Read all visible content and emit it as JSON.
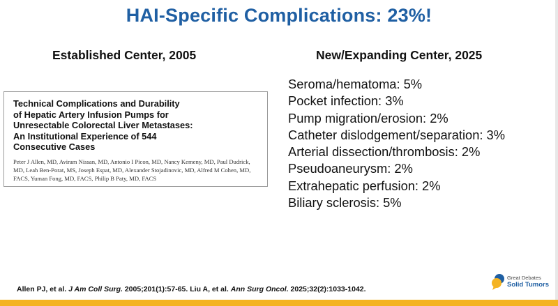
{
  "title": "HAI-Specific Complications: 23%!",
  "left_column": {
    "heading": "Established Center, 2005",
    "paper_title": "Technical Complications and Durability\nof Hepatic Artery Infusion Pumps for\nUnresectable Colorectal Liver Metastases:\nAn Institutional Experience of 544\nConsecutive Cases",
    "paper_authors": "Peter J Allen, MD, Aviram Nissan, MD, Antonio I Picon, MD, Nancy Kemeny, MD, Paul Dudrick, MD, Leah Ben-Porat, MS, Joseph Espat, MD, Alexander Stojadinovic, MD, Alfred M Cohen, MD, FACS, Yuman Fong, MD, FACS, Philip B Paty, MD, FACS"
  },
  "right_column": {
    "heading": "New/Expanding Center, 2025",
    "items": [
      "Seroma/hematoma: 5%",
      "Pocket infection: 3%",
      "Pump migration/erosion: 2%",
      "Catheter dislodgement/separation: 3%",
      "Arterial dissection/thrombosis: 2%",
      "Pseudoaneurysm: 2%",
      "Extrahepatic perfusion: 2%",
      "Biliary sclerosis: 5%"
    ]
  },
  "footer": {
    "ref_part1": "Allen PJ, et al. ",
    "ref_journal1": "J Am Coll Surg.",
    "ref_part2": " 2005;201(1):57-65. Liu A, et al. ",
    "ref_journal2": "Ann Surg Oncol.",
    "ref_part3": " 2025;32(2):1033-1042."
  },
  "logo": {
    "line1": "Great Debates",
    "line2": "Solid Tumors"
  },
  "colors": {
    "title": "#1f5fa3",
    "accent_bar": "#f4b321"
  }
}
